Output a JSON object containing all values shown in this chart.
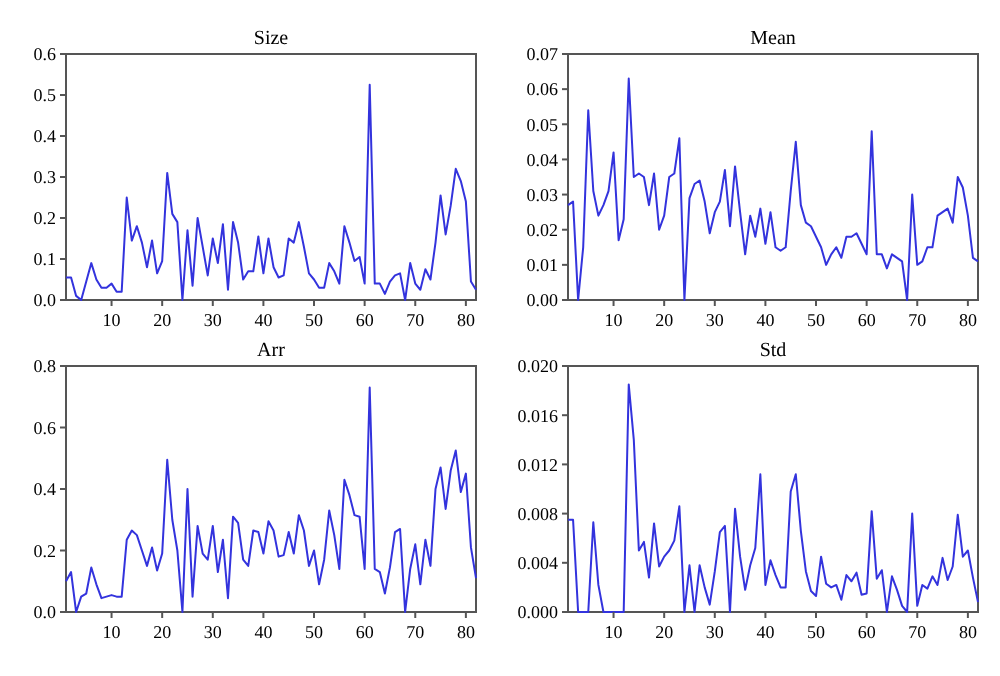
{
  "chart_data": [
    {
      "type": "line",
      "title": "Size",
      "xlim": [
        1,
        82
      ],
      "xticks": [
        10,
        20,
        30,
        40,
        50,
        60,
        70,
        80
      ],
      "ylim": [
        0,
        0.6
      ],
      "yticks": [
        {
          "value": 0,
          "label": "0.0"
        },
        0.1,
        0.2,
        0.3,
        0.4,
        0.5,
        0.6
      ],
      "grid": false,
      "marker": "none",
      "x": [
        1,
        2,
        3,
        4,
        5,
        6,
        7,
        8,
        9,
        10,
        11,
        12,
        13,
        14,
        15,
        16,
        17,
        18,
        19,
        20,
        21,
        22,
        23,
        24,
        25,
        26,
        27,
        28,
        29,
        30,
        31,
        32,
        33,
        34,
        35,
        36,
        37,
        38,
        39,
        40,
        41,
        42,
        43,
        44,
        45,
        46,
        47,
        48,
        49,
        50,
        51,
        52,
        53,
        54,
        55,
        56,
        57,
        58,
        59,
        60,
        61,
        62,
        63,
        64,
        65,
        66,
        67,
        68,
        69,
        70,
        71,
        72,
        73,
        74,
        75,
        76,
        77,
        78,
        79,
        80,
        81,
        82
      ],
      "series": [
        {
          "color": "#3333dd",
          "values": [
            0.055,
            0.055,
            0.01,
            0.0,
            0.045,
            0.09,
            0.05,
            0.03,
            0.03,
            0.04,
            0.02,
            0.02,
            0.25,
            0.145,
            0.18,
            0.14,
            0.08,
            0.145,
            0.065,
            0.095,
            0.31,
            0.21,
            0.19,
            0.0,
            0.17,
            0.035,
            0.2,
            0.13,
            0.06,
            0.15,
            0.09,
            0.185,
            0.025,
            0.19,
            0.14,
            0.05,
            0.07,
            0.07,
            0.155,
            0.065,
            0.15,
            0.08,
            0.055,
            0.06,
            0.15,
            0.14,
            0.19,
            0.13,
            0.065,
            0.05,
            0.03,
            0.03,
            0.09,
            0.07,
            0.04,
            0.18,
            0.14,
            0.095,
            0.105,
            0.04,
            0.525,
            0.04,
            0.04,
            0.015,
            0.045,
            0.06,
            0.065,
            0.0,
            0.09,
            0.04,
            0.025,
            0.075,
            0.05,
            0.14,
            0.255,
            0.16,
            0.23,
            0.32,
            0.29,
            0.24,
            0.045,
            0.025
          ]
        }
      ]
    },
    {
      "type": "line",
      "title": "Mean",
      "xlim": [
        1,
        82
      ],
      "xticks": [
        10,
        20,
        30,
        40,
        50,
        60,
        70,
        80
      ],
      "ylim": [
        0,
        0.07
      ],
      "yticks": [
        {
          "value": 0,
          "label": "0.00"
        },
        {
          "value": 0.01,
          "label": "0.01"
        },
        {
          "value": 0.02,
          "label": "0.02"
        },
        {
          "value": 0.03,
          "label": "0.03"
        },
        {
          "value": 0.04,
          "label": "0.04"
        },
        {
          "value": 0.05,
          "label": "0.05"
        },
        {
          "value": 0.06,
          "label": "0.06"
        },
        {
          "value": 0.07,
          "label": "0.07"
        }
      ],
      "grid": false,
      "marker": "none",
      "x": [
        1,
        2,
        3,
        4,
        5,
        6,
        7,
        8,
        9,
        10,
        11,
        12,
        13,
        14,
        15,
        16,
        17,
        18,
        19,
        20,
        21,
        22,
        23,
        24,
        25,
        26,
        27,
        28,
        29,
        30,
        31,
        32,
        33,
        34,
        35,
        36,
        37,
        38,
        39,
        40,
        41,
        42,
        43,
        44,
        45,
        46,
        47,
        48,
        49,
        50,
        51,
        52,
        53,
        54,
        55,
        56,
        57,
        58,
        59,
        60,
        61,
        62,
        63,
        64,
        65,
        66,
        67,
        68,
        69,
        70,
        71,
        72,
        73,
        74,
        75,
        76,
        77,
        78,
        79,
        80,
        81,
        82
      ],
      "series": [
        {
          "color": "#3333dd",
          "values": [
            0.027,
            0.028,
            0.0,
            0.015,
            0.054,
            0.031,
            0.024,
            0.027,
            0.031,
            0.042,
            0.017,
            0.023,
            0.063,
            0.035,
            0.036,
            0.035,
            0.027,
            0.036,
            0.02,
            0.024,
            0.035,
            0.036,
            0.046,
            0.0,
            0.029,
            0.033,
            0.034,
            0.028,
            0.019,
            0.025,
            0.028,
            0.037,
            0.021,
            0.038,
            0.025,
            0.013,
            0.024,
            0.018,
            0.026,
            0.016,
            0.025,
            0.015,
            0.014,
            0.015,
            0.031,
            0.045,
            0.027,
            0.022,
            0.021,
            0.018,
            0.015,
            0.01,
            0.013,
            0.015,
            0.012,
            0.018,
            0.018,
            0.019,
            0.016,
            0.013,
            0.048,
            0.013,
            0.013,
            0.009,
            0.013,
            0.012,
            0.011,
            0.0,
            0.03,
            0.01,
            0.011,
            0.015,
            0.015,
            0.024,
            0.025,
            0.026,
            0.022,
            0.035,
            0.032,
            0.024,
            0.012,
            0.011
          ]
        }
      ]
    },
    {
      "type": "line",
      "title": "Arr",
      "xlim": [
        1,
        82
      ],
      "xticks": [
        10,
        20,
        30,
        40,
        50,
        60,
        70,
        80
      ],
      "ylim": [
        0,
        0.8
      ],
      "yticks": [
        {
          "value": 0,
          "label": "0.0"
        },
        0.2,
        0.4,
        0.6,
        0.8
      ],
      "grid": false,
      "marker": "none",
      "x": [
        1,
        2,
        3,
        4,
        5,
        6,
        7,
        8,
        9,
        10,
        11,
        12,
        13,
        14,
        15,
        16,
        17,
        18,
        19,
        20,
        21,
        22,
        23,
        24,
        25,
        26,
        27,
        28,
        29,
        30,
        31,
        32,
        33,
        34,
        35,
        36,
        37,
        38,
        39,
        40,
        41,
        42,
        43,
        44,
        45,
        46,
        47,
        48,
        49,
        50,
        51,
        52,
        53,
        54,
        55,
        56,
        57,
        58,
        59,
        60,
        61,
        62,
        63,
        64,
        65,
        66,
        67,
        68,
        69,
        70,
        71,
        72,
        73,
        74,
        75,
        76,
        77,
        78,
        79,
        80,
        81,
        82
      ],
      "series": [
        {
          "color": "#3333dd",
          "values": [
            0.1,
            0.13,
            0.0,
            0.05,
            0.06,
            0.145,
            0.09,
            0.045,
            0.05,
            0.055,
            0.05,
            0.05,
            0.235,
            0.265,
            0.25,
            0.2,
            0.15,
            0.21,
            0.135,
            0.19,
            0.495,
            0.3,
            0.2,
            0.0,
            0.4,
            0.05,
            0.28,
            0.19,
            0.17,
            0.28,
            0.13,
            0.235,
            0.045,
            0.31,
            0.29,
            0.17,
            0.15,
            0.265,
            0.26,
            0.19,
            0.295,
            0.265,
            0.18,
            0.185,
            0.26,
            0.19,
            0.315,
            0.265,
            0.15,
            0.2,
            0.09,
            0.17,
            0.33,
            0.25,
            0.14,
            0.43,
            0.38,
            0.315,
            0.31,
            0.14,
            0.73,
            0.14,
            0.13,
            0.06,
            0.145,
            0.26,
            0.27,
            0.0,
            0.14,
            0.22,
            0.09,
            0.235,
            0.15,
            0.4,
            0.47,
            0.335,
            0.46,
            0.525,
            0.39,
            0.45,
            0.21,
            0.11
          ]
        }
      ]
    },
    {
      "type": "line",
      "title": "Std",
      "xlim": [
        1,
        82
      ],
      "xticks": [
        10,
        20,
        30,
        40,
        50,
        60,
        70,
        80
      ],
      "ylim": [
        0,
        0.02
      ],
      "yticks": [
        {
          "value": 0,
          "label": "0.000"
        },
        {
          "value": 0.004,
          "label": "0.004"
        },
        {
          "value": 0.008,
          "label": "0.008"
        },
        {
          "value": 0.012,
          "label": "0.012"
        },
        {
          "value": 0.016,
          "label": "0.016"
        },
        {
          "value": 0.02,
          "label": "0.020"
        }
      ],
      "grid": false,
      "marker": "none",
      "x": [
        1,
        2,
        3,
        4,
        5,
        6,
        7,
        8,
        9,
        10,
        11,
        12,
        13,
        14,
        15,
        16,
        17,
        18,
        19,
        20,
        21,
        22,
        23,
        24,
        25,
        26,
        27,
        28,
        29,
        30,
        31,
        32,
        33,
        34,
        35,
        36,
        37,
        38,
        39,
        40,
        41,
        42,
        43,
        44,
        45,
        46,
        47,
        48,
        49,
        50,
        51,
        52,
        53,
        54,
        55,
        56,
        57,
        58,
        59,
        60,
        61,
        62,
        63,
        64,
        65,
        66,
        67,
        68,
        69,
        70,
        71,
        72,
        73,
        74,
        75,
        76,
        77,
        78,
        79,
        80,
        81,
        82
      ],
      "series": [
        {
          "color": "#3333dd",
          "values": [
            0.0075,
            0.0075,
            0,
            0,
            0,
            0.0073,
            0.0022,
            0,
            0,
            0,
            0,
            0,
            0.0185,
            0.014,
            0.005,
            0.0057,
            0.0028,
            0.0072,
            0.0037,
            0.0045,
            0.005,
            0.0058,
            0.0086,
            0,
            0.0038,
            0,
            0.0038,
            0.002,
            0.0006,
            0.0033,
            0.0065,
            0.007,
            0,
            0.0084,
            0.0045,
            0.0018,
            0.0038,
            0.0052,
            0.0112,
            0.0022,
            0.0042,
            0.003,
            0.002,
            0.002,
            0.0098,
            0.0112,
            0.0066,
            0.0033,
            0.0017,
            0.0013,
            0.0045,
            0.0023,
            0.002,
            0.0022,
            0.001,
            0.003,
            0.0025,
            0.0032,
            0.0014,
            0.0015,
            0.0082,
            0.0027,
            0.0034,
            0,
            0.0029,
            0.0018,
            0.0005,
            0,
            0.008,
            0.0005,
            0.0022,
            0.0019,
            0.0029,
            0.0022,
            0.0044,
            0.0026,
            0.0037,
            0.0079,
            0.0045,
            0.005,
            0.0028,
            0.0008
          ]
        }
      ]
    }
  ]
}
